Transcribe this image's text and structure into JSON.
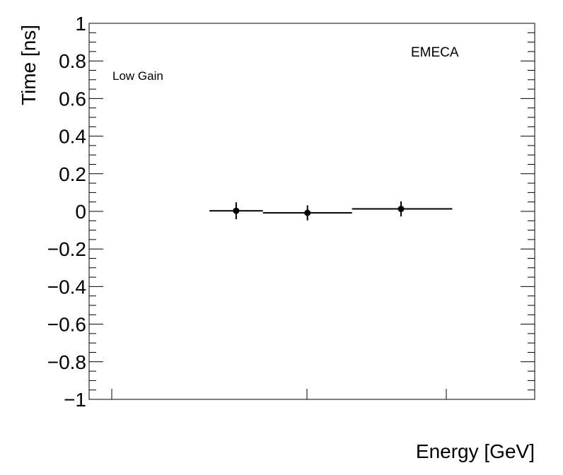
{
  "chart_data": {
    "type": "scatter",
    "ylabel": "Time [ns]",
    "xlabel": "Energy [GeV]",
    "ylim": [
      -1,
      1
    ],
    "y_ticks": [
      "1",
      "0.8",
      "0.6",
      "0.4",
      "0.2",
      "0",
      "−0.2",
      "−0.4",
      "−0.6",
      "−0.8",
      "−1"
    ],
    "y_tick_values": [
      1,
      0.8,
      0.6,
      0.4,
      0.2,
      0,
      -0.2,
      -0.4,
      -0.6,
      -0.8,
      -1
    ],
    "annotations": [
      "Low Gain",
      "EMECA"
    ],
    "grid": false,
    "points": [
      {
        "x_low": 0.27,
        "x_high": 0.39,
        "x_center": 0.33,
        "y": 0.003,
        "yerr": 0.045
      },
      {
        "x_low": 0.39,
        "x_high": 0.59,
        "x_center": 0.49,
        "y": -0.008,
        "yerr": 0.04
      },
      {
        "x_low": 0.59,
        "x_high": 0.815,
        "x_center": 0.7,
        "y": 0.013,
        "yerr": 0.04
      }
    ]
  }
}
